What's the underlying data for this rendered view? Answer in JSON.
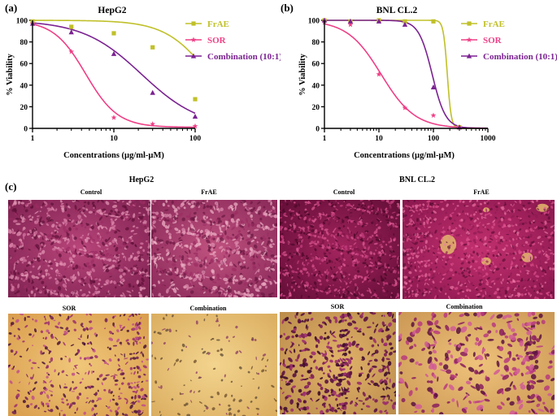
{
  "chart_data": [
    {
      "type": "line",
      "panel": "(a)",
      "title": "HepG2",
      "xlabel": "Concentrations (µg/ml-µM)",
      "ylabel": "% Viability",
      "xscale": "log",
      "xlim": [
        1,
        100
      ],
      "ylim": [
        0,
        100
      ],
      "xticks": [
        "1",
        "10",
        "100"
      ],
      "yticks": [
        "0",
        "20",
        "40",
        "60",
        "80",
        "100"
      ],
      "legend_position": "top-right",
      "series": [
        {
          "name": "FrAE",
          "color": "#c0c02a",
          "marker": "square",
          "points": [
            [
              1,
              99
            ],
            [
              3,
              94
            ],
            [
              10,
              88
            ],
            [
              30,
              75
            ],
            [
              100,
              27
            ]
          ],
          "fit": {
            "top": 100,
            "bottom": 0,
            "ic50": 150,
            "hill": 1.6
          }
        },
        {
          "name": "SOR",
          "color": "#ef3f86",
          "marker": "star",
          "points": [
            [
              1,
              97
            ],
            [
              3,
              71
            ],
            [
              10,
              10
            ],
            [
              30,
              4
            ],
            [
              100,
              2
            ]
          ],
          "fit": {
            "top": 100,
            "bottom": 1,
            "ic50": 4.5,
            "hill": 2.2
          }
        },
        {
          "name": "Combination (10:1)",
          "color": "#7b2292",
          "marker": "triangle",
          "points": [
            [
              1,
              97
            ],
            [
              3,
              89
            ],
            [
              10,
              69
            ],
            [
              30,
              33
            ],
            [
              100,
              11
            ]
          ],
          "fit": {
            "top": 100,
            "bottom": 0,
            "ic50": 22,
            "hill": 1.2
          }
        }
      ]
    },
    {
      "type": "line",
      "panel": "(b)",
      "title": "BNL CL.2",
      "xlabel": "Concentrations (µg/ml-µM)",
      "ylabel": "% Viability",
      "xscale": "log",
      "xlim": [
        1,
        1000
      ],
      "ylim": [
        0,
        100
      ],
      "xticks": [
        "1",
        "10",
        "100",
        "1000"
      ],
      "yticks": [
        "0",
        "20",
        "40",
        "60",
        "80",
        "100"
      ],
      "legend_position": "top-right",
      "series": [
        {
          "name": "FrAE",
          "color": "#c0c02a",
          "marker": "square",
          "points": [
            [
              1,
              100
            ],
            [
              3,
              99
            ],
            [
              10,
              100
            ],
            [
              30,
              99
            ],
            [
              100,
              99
            ],
            [
              300,
              1
            ]
          ],
          "fit": {
            "top": 100,
            "bottom": 0,
            "ic50": 180,
            "hill": 12
          }
        },
        {
          "name": "SOR",
          "color": "#ef3f86",
          "marker": "star",
          "points": [
            [
              1,
              98
            ],
            [
              3,
              96
            ],
            [
              10,
              50
            ],
            [
              30,
              19
            ],
            [
              100,
              12
            ],
            [
              300,
              1
            ]
          ],
          "fit": {
            "top": 100,
            "bottom": 0,
            "ic50": 11,
            "hill": 1.4
          }
        },
        {
          "name": "Combination (10:1)",
          "color": "#7b2292",
          "marker": "triangle",
          "points": [
            [
              1,
              100
            ],
            [
              3,
              99
            ],
            [
              10,
              99
            ],
            [
              30,
              96
            ],
            [
              100,
              38
            ],
            [
              300,
              1
            ]
          ],
          "fit": {
            "top": 100,
            "bottom": 0,
            "ic50": 95,
            "hill": 3.5
          }
        }
      ]
    }
  ],
  "panel_c": {
    "label": "(c)",
    "groups": [
      {
        "title": "HepG2",
        "images": [
          {
            "caption": "Control",
            "style": "dense-magenta"
          },
          {
            "caption": "FrAE",
            "style": "dense-magenta"
          },
          {
            "caption": "SOR",
            "style": "sparse-tan"
          },
          {
            "caption": "Combination",
            "style": "very-sparse-tan"
          }
        ]
      },
      {
        "title": "BNL CL.2",
        "images": [
          {
            "caption": "Control",
            "style": "dense-magenta-dark"
          },
          {
            "caption": "FrAE",
            "style": "dense-magenta-patches"
          },
          {
            "caption": "SOR",
            "style": "sparse-tan-dark"
          },
          {
            "caption": "Combination",
            "style": "sparse-tan-spread"
          }
        ]
      }
    ]
  }
}
